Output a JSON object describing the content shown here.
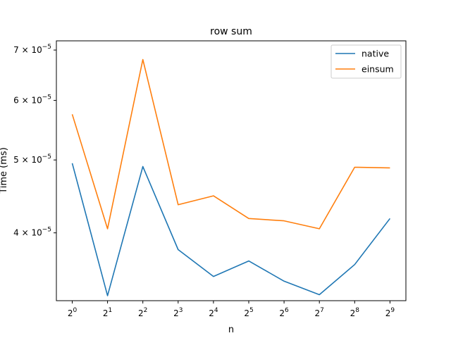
{
  "chart_data": {
    "type": "line",
    "title": "row sum",
    "xlabel": "n",
    "ylabel": "Time (ms)",
    "x": [
      1,
      2,
      4,
      8,
      16,
      32,
      64,
      128,
      256,
      512
    ],
    "x_scale": "log2",
    "y_scale": "log",
    "x_tick_labels": [
      {
        "base": "2",
        "exp": "0"
      },
      {
        "base": "2",
        "exp": "1"
      },
      {
        "base": "2",
        "exp": "2"
      },
      {
        "base": "2",
        "exp": "3"
      },
      {
        "base": "2",
        "exp": "4"
      },
      {
        "base": "2",
        "exp": "5"
      },
      {
        "base": "2",
        "exp": "6"
      },
      {
        "base": "2",
        "exp": "7"
      },
      {
        "base": "2",
        "exp": "8"
      },
      {
        "base": "2",
        "exp": "9"
      }
    ],
    "y_ticks": [
      {
        "value": 4e-05,
        "mant": "4",
        "times": "×",
        "base": "10",
        "exp": "−5"
      },
      {
        "value": 5e-05,
        "mant": "5",
        "times": "×",
        "base": "10",
        "exp": "−5"
      },
      {
        "value": 6e-05,
        "mant": "6",
        "times": "×",
        "base": "10",
        "exp": "−5"
      },
      {
        "value": 7e-05,
        "mant": "7",
        "times": "×",
        "base": "10",
        "exp": "−5"
      }
    ],
    "ylim": [
      3.25e-05,
      7.2e-05
    ],
    "legend_position": "top-right",
    "grid": false,
    "series": [
      {
        "name": "native",
        "color": "#1f77b4",
        "values": [
          4.95e-05,
          3.3e-05,
          4.9e-05,
          3.8e-05,
          3.5e-05,
          3.67e-05,
          3.45e-05,
          3.31e-05,
          3.63e-05,
          4.18e-05
        ]
      },
      {
        "name": "einsum",
        "color": "#ff7f0e",
        "values": [
          5.75e-05,
          4.05e-05,
          6.8e-05,
          4.36e-05,
          4.48e-05,
          4.18e-05,
          4.15e-05,
          4.05e-05,
          4.89e-05,
          4.88e-05
        ]
      }
    ]
  }
}
